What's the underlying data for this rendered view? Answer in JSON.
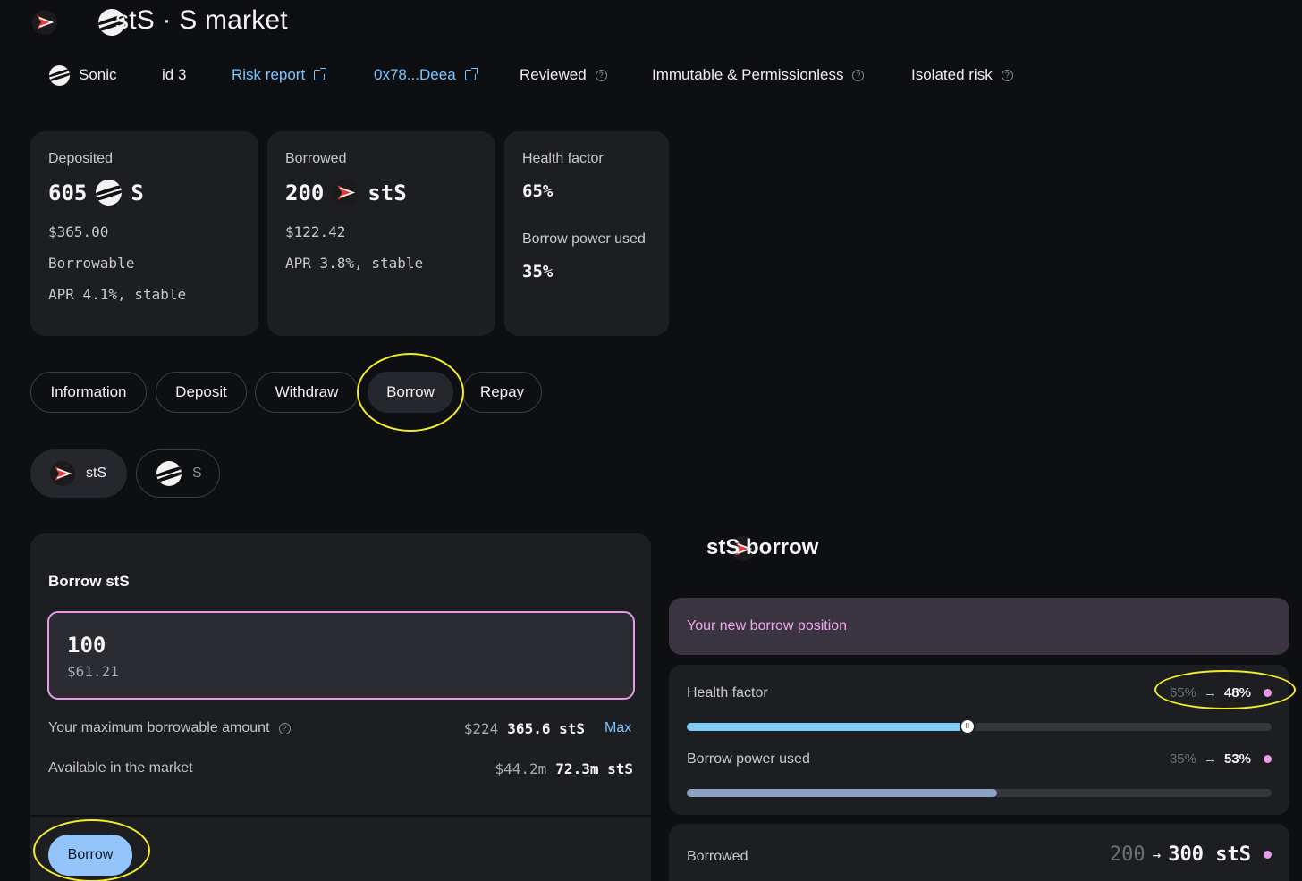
{
  "header": {
    "title": "stS · S market"
  },
  "meta": {
    "network": "Sonic",
    "id": "id 3",
    "risk_report": "Risk report",
    "address": "0x78...Deea",
    "reviewed": "Reviewed",
    "immutable": "Immutable & Permissionless",
    "isolated": "Isolated risk"
  },
  "cards": {
    "deposited": {
      "label": "Deposited",
      "amount": "605",
      "token": "S",
      "usd": "$365.00",
      "line1": "Borrowable",
      "line2": "APR 4.1%, stable"
    },
    "borrowed": {
      "label": "Borrowed",
      "amount": "200",
      "token": "stS",
      "usd": "$122.42",
      "line1": "APR 3.8%, stable"
    },
    "health": {
      "label": "Health factor",
      "value": "65%",
      "label2": "Borrow power used",
      "value2": "35%"
    }
  },
  "tabs": [
    {
      "label": "Information"
    },
    {
      "label": "Deposit"
    },
    {
      "label": "Withdraw"
    },
    {
      "label": "Borrow"
    },
    {
      "label": "Repay"
    }
  ],
  "assets": [
    {
      "label": "stS"
    },
    {
      "label": "S"
    }
  ],
  "borrow_form": {
    "title": "Borrow stS",
    "amount": "100",
    "amount_usd": "$61.21",
    "max_label": "Your maximum borrowable amount",
    "max_usd": "$224",
    "max_amount": "365.6 stS",
    "max_button": "Max",
    "available_label": "Available in the market",
    "available_usd": "$44.2m",
    "available_amount": "72.3m stS",
    "submit": "Borrow"
  },
  "summary": {
    "title": "stS borrow",
    "new_position": "Your new borrow position",
    "health_label": "Health factor",
    "health_from": "65%",
    "health_to": "48%",
    "health_fill": 0.48,
    "power_label": "Borrow power used",
    "power_from": "35%",
    "power_to": "53%",
    "power_fill": 0.53,
    "borrowed_label": "Borrowed",
    "borrowed_from": "200",
    "borrowed_to": "300 stS"
  },
  "colors": {
    "background": "#0e0f12",
    "card": "#1d1e22",
    "link": "#7cc4ff",
    "accent_pink": "#e79ae8",
    "health_bar": "#7fcdf7",
    "power_bar": "#8ca2c4",
    "primary_button": "#93c5fb",
    "annotation": "#f2ec2c"
  }
}
